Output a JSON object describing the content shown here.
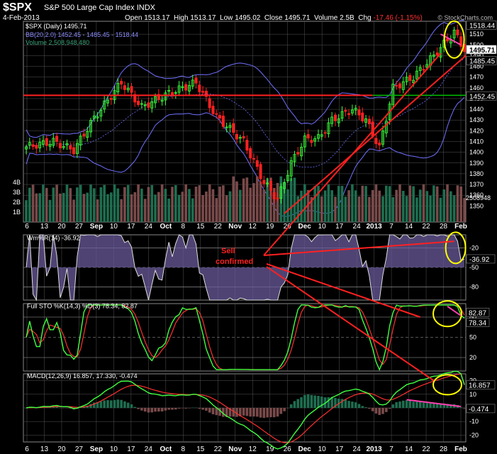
{
  "header": {
    "symbol": "$SPX",
    "name": "S&P 500 Large Cap Index",
    "exchange": "INDX",
    "date": "4-Feb-2013",
    "open_label": "Open",
    "open": "1513.17",
    "high_label": "High",
    "high": "1513.17",
    "low_label": "Low",
    "low": "1495.02",
    "close_label": "Close",
    "close": "1495.71",
    "volume_label": "Volume",
    "volume": "2.5B",
    "chg_label": "Chg",
    "chg": "-17.46 (-1.15%)",
    "copyright": "© StockCharts.com"
  },
  "colors": {
    "up": "#3aff3a",
    "down": "#ff2020",
    "bollinger": "#7070ff",
    "resistance": "#ff2020",
    "support": "#00c000",
    "grid": "#555555",
    "vol_up": "#1e6e50",
    "vol_down": "#7a4a4a",
    "annotation": "#ff2020",
    "highlight_circle": "#ffff00",
    "pink": "#ff40b0"
  },
  "chart_data": [
    {
      "type": "candlestick",
      "title": "$SPX (Daily) 1495.71",
      "legend": [
        {
          "label": "$SPX (Daily) 1495.71",
          "color": "#ffffff"
        },
        {
          "label": "BB(20,2.0) 1452.45 - 1485.45 - 1518.44",
          "color": "#7070ff"
        },
        {
          "label": "Volume 2,508,948,480",
          "color": "#1e8e60"
        }
      ],
      "ylim": [
        1335,
        1522
      ],
      "y_ticks": [
        1350,
        1360,
        1370,
        1380,
        1390,
        1400,
        1410,
        1420,
        1430,
        1440,
        1450,
        1460,
        1470,
        1480,
        1490,
        1500,
        1510
      ],
      "volume_ticks": [
        "1B",
        "2B",
        "3B",
        "4B"
      ],
      "volume_tick_values": [
        1,
        2,
        3,
        4
      ],
      "price_labels": [
        "1518.44",
        "1495.71",
        "1485.45",
        "1452.45"
      ],
      "price_label_values": [
        1518.44,
        1495.71,
        1485.45,
        1452.45
      ],
      "last_volume_label": "2508948",
      "resistance_level": 1453,
      "support_level": 1453,
      "annotations": [
        {
          "text": "Sell",
          "color": "#ff2020"
        },
        {
          "text": "confirmed",
          "color": "#ff2020"
        }
      ]
    },
    {
      "type": "line",
      "title": "Wm%R(14) -36.92",
      "ylim": [
        -100,
        0
      ],
      "y_ticks": [
        -20,
        -50,
        -80
      ],
      "last_value_label": "-36.92",
      "last_value": -36.92
    },
    {
      "type": "line",
      "title": "Full STO %K(14,3) %D(3) 78.34, 82.87",
      "series": [
        {
          "name": "%K(14,3) 78.34",
          "color": "#40ff40"
        },
        {
          "name": "%D(3) 82.87",
          "color": "#ff3030"
        }
      ],
      "ylim": [
        0,
        100
      ],
      "y_ticks": [
        20,
        50,
        80
      ],
      "value_labels": [
        "82.87",
        "78.34"
      ],
      "value_label_values": [
        82.87,
        78.34
      ]
    },
    {
      "type": "line",
      "title": "MACD(12,26,9) 16.857, 17.330, -0.474",
      "series": [
        {
          "name": "MACD 16.857",
          "color": "#40ff40"
        },
        {
          "name": "Signal 17.330",
          "color": "#ff3030"
        },
        {
          "name": "Histogram -0.474",
          "color": "#7a4a4a"
        }
      ],
      "ylim": [
        -25,
        25
      ],
      "y_ticks": [
        -20,
        -10,
        0,
        10,
        20
      ],
      "value_labels": [
        "16.857",
        "-0.474"
      ],
      "value_label_values": [
        16.857,
        -0.474
      ]
    }
  ],
  "x_axis": {
    "labels": [
      "6",
      "13",
      "20",
      "27",
      "Sep",
      "10",
      "17",
      "24",
      "Oct",
      "8",
      "15",
      "22",
      "Nov",
      "12",
      "19",
      "26",
      "Dec",
      "10",
      "17",
      "24",
      "2013",
      "7",
      "14",
      "22",
      "28",
      "Feb"
    ],
    "bold": [
      "Sep",
      "Oct",
      "Nov",
      "Dec",
      "2013",
      "Feb"
    ]
  },
  "panels": {
    "wmr_title": "Wm%R(14) -36.92",
    "sto_title": "Full STO %K(14,3) %D(3) 78.34, 82.87",
    "macd_title": "MACD(12,26,9) 16.857, 17.330, -0.474"
  }
}
